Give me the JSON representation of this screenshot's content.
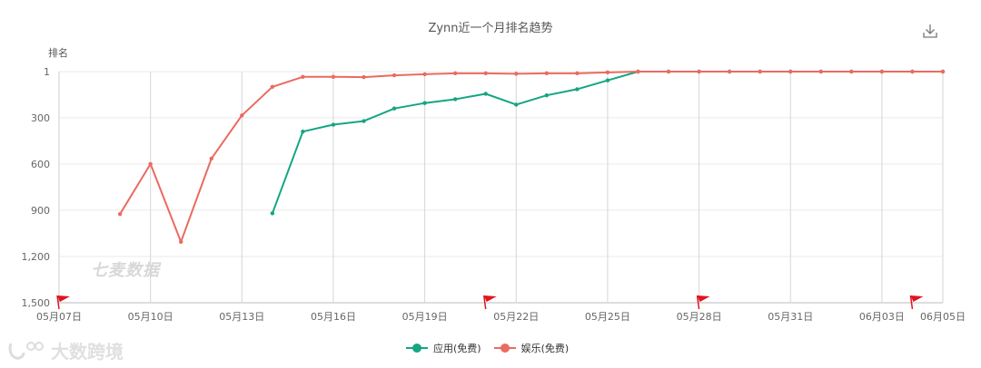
{
  "header": {
    "title": "Zynn近一个月排名趋势",
    "download_icon": "download-icon"
  },
  "watermarks": {
    "center": "七麦数据",
    "bottom_left": "大数跨境"
  },
  "chart_data": {
    "type": "line",
    "title": "Zynn近一个月排名趋势",
    "xlabel": "",
    "ylabel": "排名",
    "y_inverted": true,
    "ylim": [
      1,
      1500
    ],
    "yticks": [
      "1",
      "300",
      "600",
      "900",
      "1,200",
      "1,500"
    ],
    "grid": true,
    "legend_position": "bottom",
    "x": [
      "05月07日",
      "05月08日",
      "05月09日",
      "05月10日",
      "05月11日",
      "05月12日",
      "05月13日",
      "05月14日",
      "05月15日",
      "05月16日",
      "05月17日",
      "05月18日",
      "05月19日",
      "05月20日",
      "05月21日",
      "05月22日",
      "05月23日",
      "05月24日",
      "05月25日",
      "05月26日",
      "05月27日",
      "05月28日",
      "05月29日",
      "05月30日",
      "05月31日",
      "06月01日",
      "06月02日",
      "06月03日",
      "06月04日",
      "06月05日"
    ],
    "xticks": [
      "05月07日",
      "05月10日",
      "05月13日",
      "05月16日",
      "05月19日",
      "05月22日",
      "05月25日",
      "05月28日",
      "05月31日",
      "06月03日",
      "06月05日"
    ],
    "series": [
      {
        "name": "应用(免费)",
        "color": "#14a583",
        "values": [
          null,
          null,
          null,
          null,
          null,
          null,
          null,
          920,
          390,
          345,
          322,
          240,
          205,
          180,
          145,
          215,
          155,
          115,
          58,
          1,
          1,
          1,
          1,
          1,
          1,
          1,
          1,
          1,
          1,
          1
        ]
      },
      {
        "name": "娱乐(免费)",
        "color": "#ea6b5f",
        "values": [
          null,
          null,
          925,
          600,
          1105,
          565,
          285,
          100,
          35,
          35,
          37,
          25,
          18,
          12,
          12,
          15,
          12,
          12,
          6,
          1,
          1,
          1,
          1,
          1,
          1,
          1,
          1,
          1,
          1,
          1
        ]
      }
    ],
    "event_flags": [
      "05月07日",
      "05月21日",
      "05月28日",
      "06月04日"
    ],
    "flag_color": "#e0141e"
  },
  "legend": [
    {
      "label": "应用(免费)",
      "color": "#14a583"
    },
    {
      "label": "娱乐(免费)",
      "color": "#ea6b5f"
    }
  ]
}
